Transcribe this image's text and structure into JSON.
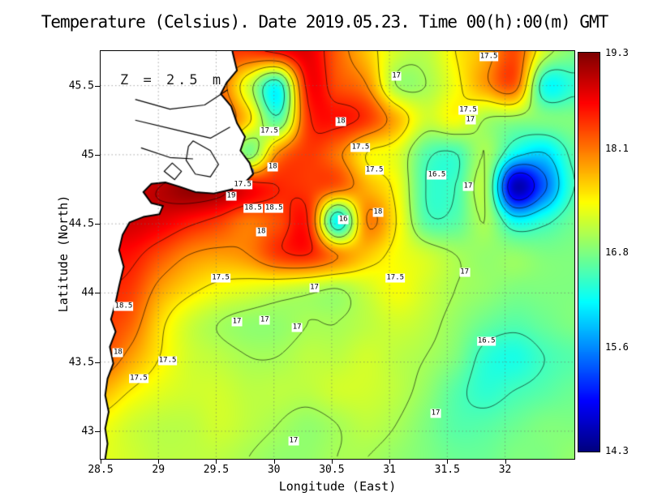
{
  "title": "Temperature (Celsius). Date 2019.05.23. Time 00(h):00(m) GMT",
  "axes": {
    "xlabel": "Longitude (East)",
    "ylabel": "Latitude (North)",
    "xlim": [
      28.5,
      32.6
    ],
    "ylim": [
      42.8,
      45.75
    ],
    "xticks": [
      28.5,
      29,
      29.5,
      30,
      30.5,
      31,
      31.5,
      32
    ],
    "xtick_labels": [
      "28.5",
      "29",
      "29.5",
      "30",
      "30.5",
      "31",
      "31.5",
      "32"
    ],
    "yticks": [
      43,
      43.5,
      44,
      44.5,
      45,
      45.5
    ],
    "ytick_labels": [
      "43",
      "43.5",
      "44",
      "44.5",
      "45",
      "45.5"
    ],
    "grid": true
  },
  "colorbar": {
    "min": 14.3,
    "max": 19.3,
    "tick_values": [
      19.3,
      18.1,
      16.8,
      15.6,
      14.3
    ],
    "tick_labels": [
      "19.3",
      "18.1",
      "16.8",
      "15.6",
      "14.3"
    ],
    "colormap": "jet",
    "top_color": "#780000",
    "bottom_color": "#000082"
  },
  "chart_data": {
    "type": "heatmap",
    "variable": "Temperature (Celsius)",
    "date": "2019.05.23",
    "time": "00(h):00(m) GMT",
    "depth": "Z = 2.5 m",
    "lon_range": [
      28.5,
      32.6
    ],
    "lat_range": [
      42.8,
      45.75
    ],
    "value_range": [
      14.3,
      19.3
    ],
    "grid_nx": 17,
    "grid_ny": 13,
    "values": [
      [
        18.0,
        18.0,
        18.0,
        18.2,
        18.4,
        18.4,
        18.6,
        18.8,
        18.2,
        17.7,
        17.2,
        17.1,
        17.5,
        17.8,
        18.3,
        17.2,
        16.8
      ],
      [
        18.0,
        18.0,
        18.0,
        18.1,
        18.2,
        17.2,
        16.3,
        18.6,
        18.3,
        18.0,
        17.0,
        17.0,
        17.4,
        17.9,
        18.2,
        16.3,
        16.4
      ],
      [
        18.2,
        18.2,
        18.2,
        18.3,
        18.4,
        17.6,
        16.6,
        18.4,
        18.6,
        18.4,
        17.8,
        17.2,
        17.4,
        17.0,
        16.9,
        16.8,
        16.8
      ],
      [
        18.3,
        18.3,
        18.3,
        18.3,
        18.0,
        16.8,
        18.0,
        18.4,
        18.1,
        17.5,
        17.3,
        16.6,
        16.5,
        17.0,
        16.2,
        16.0,
        16.6
      ],
      [
        18.6,
        18.8,
        19.0,
        19.2,
        19.1,
        18.7,
        18.5,
        18.4,
        18.2,
        17.8,
        17.4,
        16.5,
        16.5,
        17.0,
        14.6,
        15.4,
        16.5
      ],
      [
        18.9,
        18.9,
        18.8,
        18.6,
        18.4,
        18.1,
        18.3,
        18.5,
        16.2,
        18.0,
        17.5,
        16.6,
        16.6,
        17.0,
        16.2,
        16.4,
        16.7
      ],
      [
        18.6,
        18.6,
        18.3,
        18.0,
        17.9,
        18.0,
        18.4,
        18.5,
        18.0,
        17.7,
        17.4,
        17.2,
        17.0,
        16.9,
        16.9,
        16.8,
        16.8
      ],
      [
        18.5,
        18.4,
        17.9,
        17.6,
        17.4,
        17.3,
        17.2,
        17.1,
        17.0,
        17.2,
        17.4,
        17.2,
        17.0,
        16.9,
        16.8,
        16.8,
        16.8
      ],
      [
        18.4,
        18.2,
        17.6,
        17.2,
        17.0,
        16.9,
        16.9,
        17.0,
        17.0,
        17.1,
        17.2,
        17.1,
        16.9,
        16.7,
        16.6,
        16.7,
        16.8
      ],
      [
        18.3,
        17.9,
        17.5,
        17.2,
        17.1,
        17.0,
        17.0,
        17.1,
        17.1,
        17.2,
        17.1,
        17.0,
        16.8,
        16.4,
        16.3,
        16.5,
        16.6
      ],
      [
        17.8,
        17.5,
        17.3,
        17.2,
        17.2,
        17.1,
        17.1,
        17.1,
        17.2,
        17.2,
        17.1,
        16.9,
        16.6,
        16.4,
        16.5,
        16.6,
        16.7
      ],
      [
        17.4,
        17.2,
        17.1,
        17.1,
        17.2,
        17.1,
        17.0,
        16.9,
        17.0,
        17.1,
        17.0,
        16.8,
        16.6,
        16.6,
        16.7,
        16.8,
        16.8
      ],
      [
        17.3,
        17.2,
        17.1,
        17.1,
        17.1,
        17.0,
        16.9,
        16.9,
        17.0,
        17.0,
        16.9,
        16.8,
        16.7,
        16.7,
        16.8,
        16.8,
        16.9
      ]
    ],
    "contour_levels": [
      15,
      15.5,
      16,
      16.5,
      17,
      17.5,
      18,
      18.5,
      19
    ],
    "cold_spots": [
      {
        "lon": 29.79,
        "lat": 44.88,
        "value": 15.2,
        "radius_px": 6
      }
    ],
    "contour_labels": [
      {
        "text": "17.5",
        "lon": 31.86,
        "lat": 45.71
      },
      {
        "text": "17",
        "lon": 31.06,
        "lat": 45.57
      },
      {
        "text": "17.5",
        "lon": 31.68,
        "lat": 45.32
      },
      {
        "text": "17",
        "lon": 31.7,
        "lat": 45.25
      },
      {
        "text": "17.5",
        "lon": 29.96,
        "lat": 45.17
      },
      {
        "text": "18",
        "lon": 30.58,
        "lat": 45.24
      },
      {
        "text": "17.5",
        "lon": 30.75,
        "lat": 45.05
      },
      {
        "text": "17.5",
        "lon": 30.87,
        "lat": 44.89
      },
      {
        "text": "16.5",
        "lon": 31.41,
        "lat": 44.85
      },
      {
        "text": "17",
        "lon": 31.68,
        "lat": 44.77
      },
      {
        "text": "17.5",
        "lon": 29.73,
        "lat": 44.78
      },
      {
        "text": "18",
        "lon": 29.99,
        "lat": 44.91
      },
      {
        "text": "19",
        "lon": 29.63,
        "lat": 44.7
      },
      {
        "text": "18.5",
        "lon": 29.82,
        "lat": 44.61
      },
      {
        "text": "18.5",
        "lon": 30.0,
        "lat": 44.61
      },
      {
        "text": "18",
        "lon": 29.89,
        "lat": 44.44
      },
      {
        "text": "16",
        "lon": 30.6,
        "lat": 44.53
      },
      {
        "text": "18",
        "lon": 30.9,
        "lat": 44.58
      },
      {
        "text": "17.5",
        "lon": 29.54,
        "lat": 44.11
      },
      {
        "text": "17",
        "lon": 30.35,
        "lat": 44.04
      },
      {
        "text": "17.5",
        "lon": 31.05,
        "lat": 44.11
      },
      {
        "text": "17",
        "lon": 31.65,
        "lat": 44.15
      },
      {
        "text": "18.5",
        "lon": 28.7,
        "lat": 43.9
      },
      {
        "text": "17",
        "lon": 29.68,
        "lat": 43.79
      },
      {
        "text": "17",
        "lon": 29.92,
        "lat": 43.8
      },
      {
        "text": "17",
        "lon": 30.2,
        "lat": 43.75
      },
      {
        "text": "18",
        "lon": 28.65,
        "lat": 43.57
      },
      {
        "text": "17.5",
        "lon": 29.08,
        "lat": 43.51
      },
      {
        "text": "17.5",
        "lon": 28.83,
        "lat": 43.38
      },
      {
        "text": "16.5",
        "lon": 31.84,
        "lat": 43.65
      },
      {
        "text": "17",
        "lon": 31.4,
        "lat": 43.13
      },
      {
        "text": "17",
        "lon": 30.17,
        "lat": 42.93
      }
    ]
  },
  "land": {
    "coast": [
      [
        29.64,
        45.75
      ],
      [
        29.68,
        45.61
      ],
      [
        29.59,
        45.52
      ],
      [
        29.54,
        45.44
      ],
      [
        29.63,
        45.35
      ],
      [
        29.68,
        45.23
      ],
      [
        29.75,
        45.13
      ],
      [
        29.71,
        45.03
      ],
      [
        29.79,
        44.94
      ],
      [
        29.82,
        44.86
      ],
      [
        29.75,
        44.8
      ],
      [
        29.64,
        44.75
      ],
      [
        29.48,
        44.72
      ],
      [
        29.32,
        44.73
      ],
      [
        29.18,
        44.77
      ],
      [
        29.06,
        44.8
      ],
      [
        28.94,
        44.79
      ],
      [
        28.87,
        44.73
      ],
      [
        28.94,
        44.65
      ],
      [
        29.04,
        44.63
      ],
      [
        29.01,
        44.57
      ],
      [
        28.87,
        44.55
      ],
      [
        28.75,
        44.51
      ],
      [
        28.69,
        44.42
      ],
      [
        28.66,
        44.31
      ],
      [
        28.7,
        44.19
      ],
      [
        28.66,
        44.05
      ],
      [
        28.63,
        43.93
      ],
      [
        28.59,
        43.81
      ],
      [
        28.63,
        43.72
      ],
      [
        28.58,
        43.61
      ],
      [
        28.61,
        43.49
      ],
      [
        28.56,
        43.38
      ],
      [
        28.54,
        43.26
      ],
      [
        28.57,
        43.14
      ],
      [
        28.54,
        43.02
      ],
      [
        28.56,
        42.91
      ],
      [
        28.54,
        42.8
      ]
    ],
    "lagoons": [
      [
        [
          29.3,
          45.1
        ],
        [
          29.45,
          45.03
        ],
        [
          29.52,
          44.93
        ],
        [
          29.45,
          44.84
        ],
        [
          29.32,
          44.86
        ],
        [
          29.24,
          44.96
        ],
        [
          29.26,
          45.06
        ]
      ],
      [
        [
          29.12,
          44.94
        ],
        [
          29.2,
          44.88
        ],
        [
          29.14,
          44.82
        ],
        [
          29.05,
          44.88
        ]
      ]
    ],
    "rivers": [
      [
        [
          28.8,
          45.4
        ],
        [
          29.1,
          45.33
        ],
        [
          29.4,
          45.36
        ],
        [
          29.6,
          45.47
        ]
      ],
      [
        [
          28.8,
          45.25
        ],
        [
          29.15,
          45.18
        ],
        [
          29.45,
          45.12
        ],
        [
          29.62,
          45.2
        ]
      ],
      [
        [
          28.85,
          45.05
        ],
        [
          29.1,
          44.98
        ],
        [
          29.3,
          44.97
        ]
      ]
    ]
  }
}
